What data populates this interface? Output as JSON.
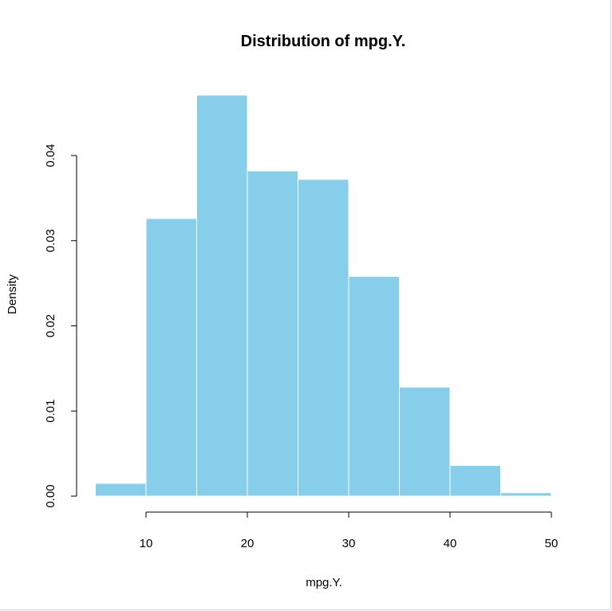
{
  "chart_data": {
    "type": "bar",
    "subtype": "histogram",
    "title": "Distribution of mpg.Y.",
    "xlabel": "mpg.Y.",
    "ylabel": "Density",
    "bin_edges": [
      5,
      10,
      15,
      20,
      25,
      30,
      35,
      40,
      45,
      50
    ],
    "bins": [
      {
        "x0": 5,
        "x1": 10,
        "density": 0.0015
      },
      {
        "x0": 10,
        "x1": 15,
        "density": 0.0326
      },
      {
        "x0": 15,
        "x1": 20,
        "density": 0.0471
      },
      {
        "x0": 20,
        "x1": 25,
        "density": 0.0382
      },
      {
        "x0": 25,
        "x1": 30,
        "density": 0.0372
      },
      {
        "x0": 30,
        "x1": 35,
        "density": 0.0258
      },
      {
        "x0": 35,
        "x1": 40,
        "density": 0.0128
      },
      {
        "x0": 40,
        "x1": 45,
        "density": 0.0036
      },
      {
        "x0": 45,
        "x1": 50,
        "density": 0.0004
      }
    ],
    "xlim": [
      10,
      50
    ],
    "ylim": [
      0,
      0.04
    ],
    "x_ticks": [
      10,
      20,
      30,
      40,
      50
    ],
    "x_tick_labels": [
      "10",
      "20",
      "30",
      "40",
      "50"
    ],
    "y_ticks": [
      0,
      0.01,
      0.02,
      0.03,
      0.04
    ],
    "y_tick_labels": [
      "0.00",
      "0.01",
      "0.02",
      "0.03",
      "0.04"
    ],
    "grid": false,
    "colors": {
      "bar_fill": "#87ceeb",
      "bar_border": "#ffffff",
      "axis": "#000000"
    }
  }
}
